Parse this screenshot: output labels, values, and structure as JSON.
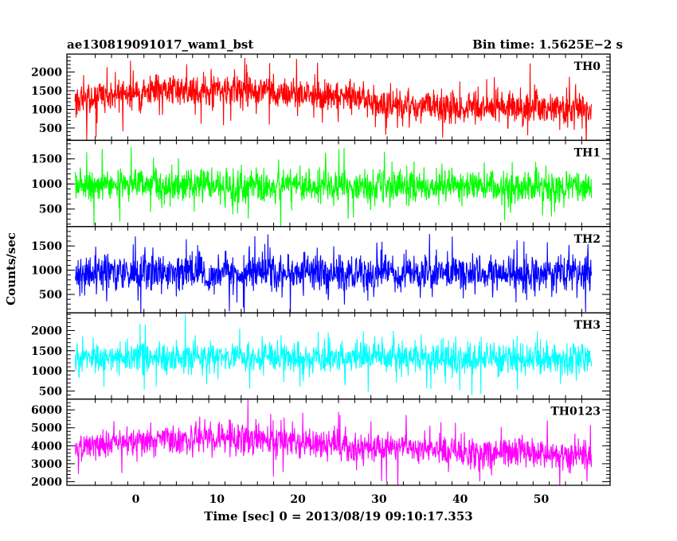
{
  "header": {
    "left": "ae130819091017_wam1_bst",
    "right": "Bin time: 1.5625E−2 s"
  },
  "chart_data": {
    "type": "line",
    "title": "ae130819091017_wam1_bst",
    "subtitle": "Bin time: 1.5625E−2 s",
    "xlabel": "Time [sec] 0 = 2013/08/19 09:10:17.353",
    "ylabel": "Counts/sec",
    "xlim": [
      -8.5,
      58.5
    ],
    "x_ticks": [
      0,
      10,
      20,
      30,
      40,
      50
    ],
    "x_tick_labels": [
      "0",
      "10",
      "20",
      "30",
      "40",
      "50"
    ],
    "data_x_range": [
      -7.5,
      56.2
    ],
    "bin_time_s": 0.015625,
    "grid": false,
    "legend": "none",
    "panels": [
      {
        "name": "TH0",
        "color": "#ff0000",
        "ylim": [
          170,
          2480
        ],
        "y_ticks": [
          500,
          1000,
          1500,
          2000
        ],
        "y_tick_labels": [
          "500",
          "1000",
          "1500",
          "2000"
        ],
        "trend_x": [
          -7.5,
          0,
          5,
          10,
          15,
          20,
          25,
          28,
          30,
          35,
          40,
          45,
          50,
          56
        ],
        "trend_mean": [
          1250,
          1480,
          1550,
          1530,
          1500,
          1420,
          1360,
          1300,
          1120,
          1080,
          1060,
          1050,
          1040,
          1000
        ],
        "spread": 420
      },
      {
        "name": "TH1",
        "color": "#00ff00",
        "ylim": [
          150,
          1870
        ],
        "y_ticks": [
          500,
          1000,
          1500
        ],
        "y_tick_labels": [
          "500",
          "1000",
          "1500"
        ],
        "trend_x": [
          -7.5,
          10,
          30,
          56
        ],
        "trend_mean": [
          960,
          980,
          950,
          940
        ],
        "spread": 320
      },
      {
        "name": "TH2",
        "color": "#0000ff",
        "ylim": [
          120,
          1900
        ],
        "y_ticks": [
          500,
          1000,
          1500
        ],
        "y_tick_labels": [
          "500",
          "1000",
          "1500"
        ],
        "trend_x": [
          -7.5,
          10,
          30,
          56
        ],
        "trend_mean": [
          950,
          960,
          950,
          940
        ],
        "spread": 380
      },
      {
        "name": "TH3",
        "color": "#00ffff",
        "ylim": [
          300,
          2440
        ],
        "y_ticks": [
          500,
          1000,
          1500,
          2000
        ],
        "y_tick_labels": [
          "500",
          "1000",
          "1500",
          "2000"
        ],
        "trend_x": [
          -7.5,
          10,
          30,
          56
        ],
        "trend_mean": [
          1320,
          1340,
          1330,
          1300
        ],
        "spread": 380
      },
      {
        "name": "TH0123",
        "color": "#ff00ff",
        "ylim": [
          1800,
          6600
        ],
        "y_ticks": [
          2000,
          3000,
          4000,
          5000,
          6000
        ],
        "y_tick_labels": [
          "2000",
          "3000",
          "4000",
          "5000",
          "6000"
        ],
        "trend_x": [
          -7.5,
          0,
          10,
          15,
          20,
          30,
          40,
          50,
          56
        ],
        "trend_mean": [
          3900,
          4300,
          4450,
          4400,
          4200,
          3900,
          3700,
          3600,
          3500
        ],
        "spread": 800
      }
    ]
  }
}
